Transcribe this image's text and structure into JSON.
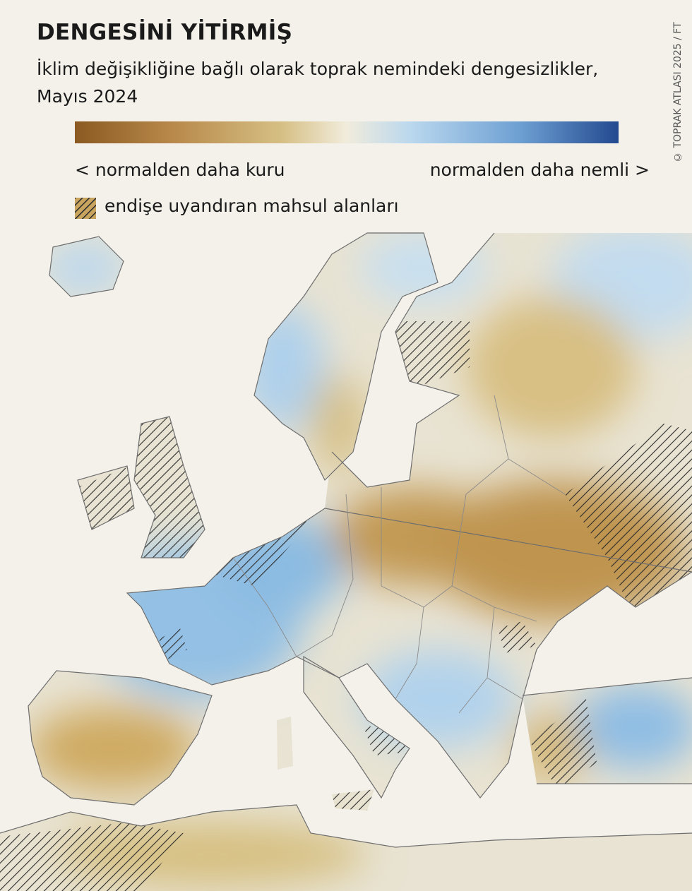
{
  "header": {
    "title": "DENGESİNİ YİTİRMİŞ",
    "subtitle": "İklim değişikliğine bağlı olarak toprak nemindeki dengesizlikler, Mayıs 2024",
    "credit": "© TOPRAK ATLASI 2025 / FT"
  },
  "legend": {
    "dry_label": "< normalden daha kuru",
    "wet_label": "normalden daha nemli >",
    "hatch_label": "endişe uyandıran mahsul alanları"
  }
}
